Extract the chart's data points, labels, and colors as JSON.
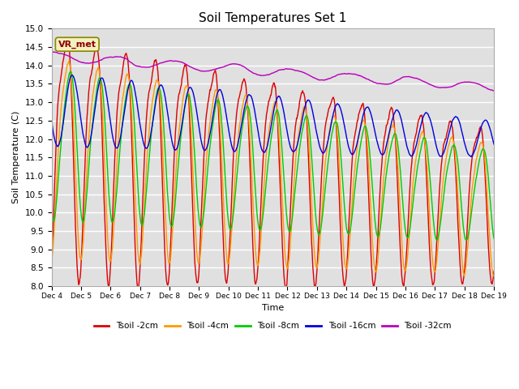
{
  "title": "Soil Temperatures Set 1",
  "xlabel": "Time",
  "ylabel": "Soil Temperature (C)",
  "ylim": [
    8.0,
    15.0
  ],
  "yticks": [
    8.0,
    8.5,
    9.0,
    9.5,
    10.0,
    10.5,
    11.0,
    11.5,
    12.0,
    12.5,
    13.0,
    13.5,
    14.0,
    14.5,
    15.0
  ],
  "xtick_labels": [
    "Dec 4",
    "Dec 5",
    "Dec 6",
    "Dec 7",
    "Dec 8",
    "Dec 9",
    "Dec 10",
    "Dec 11",
    "Dec 12",
    "Dec 13",
    "Dec 14",
    "Dec 15",
    "Dec 16",
    "Dec 17",
    "Dec 18",
    "Dec 19"
  ],
  "colors": {
    "Tsoil_2cm": "#dd0000",
    "Tsoil_4cm": "#ff9900",
    "Tsoil_8cm": "#00cc00",
    "Tsoil_16cm": "#0000dd",
    "Tsoil_32cm": "#bb00bb"
  },
  "legend_labels": [
    "Tsoil -2cm",
    "Tsoil -4cm",
    "Tsoil -8cm",
    "Tsoil -16cm",
    "Tsoil -32cm"
  ],
  "annotation_text": "VR_met",
  "annotation_color": "#8b0000",
  "outer_bg": "#ffffff",
  "plot_bg_color": "#e0e0e0",
  "n_points": 1440,
  "n_days": 15
}
